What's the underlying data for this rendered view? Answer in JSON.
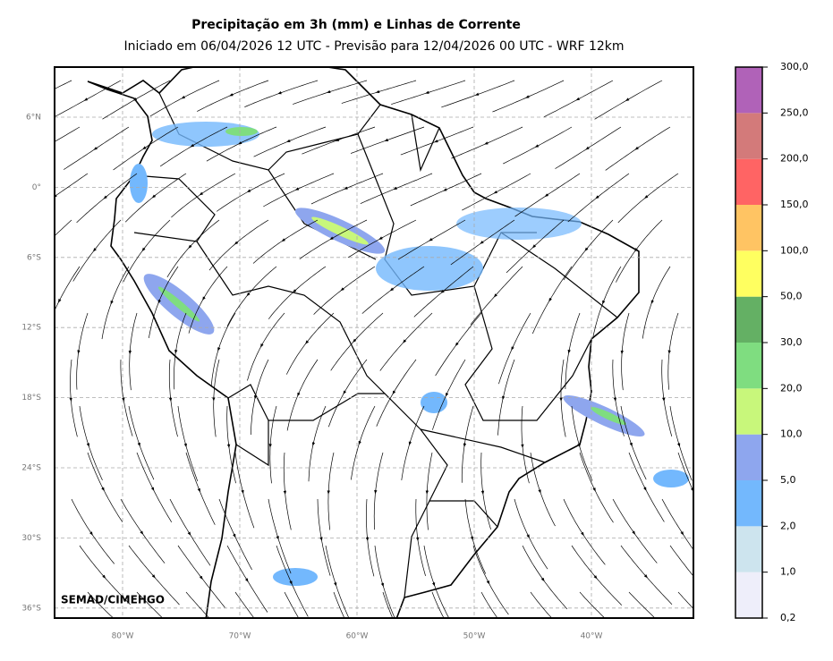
{
  "header": {
    "title": "Precipitação em 3h (mm) e Linhas de Corrente",
    "subtitle": "Iniciado em 06/04/2026 12 UTC - Previsão para 12/04/2026 00 UTC - WRF 12km"
  },
  "map": {
    "lat_labels": [
      "6°N",
      "0°",
      "6°S",
      "12°S",
      "18°S",
      "24°S",
      "30°S",
      "36°S"
    ],
    "lon_labels": [
      "80°W",
      "70°W",
      "60°W",
      "50°W",
      "40°W"
    ],
    "credit": "SEMAD/CIMEHGO"
  },
  "colorbar": {
    "labels": [
      "0,2",
      "1,0",
      "2,0",
      "5,0",
      "10,0",
      "20,0",
      "30,0",
      "50,0",
      "100,0",
      "150,0",
      "200,0",
      "250,0",
      "300,0"
    ],
    "colors": [
      "#eeeefa",
      "#cde4ee",
      "#73b8fd",
      "#8ea6ee",
      "#c8f77b",
      "#7fdd80",
      "#64b064",
      "#ffff60",
      "#ffc463",
      "#ff6464",
      "#d37a7a",
      "#b062b8"
    ]
  }
}
